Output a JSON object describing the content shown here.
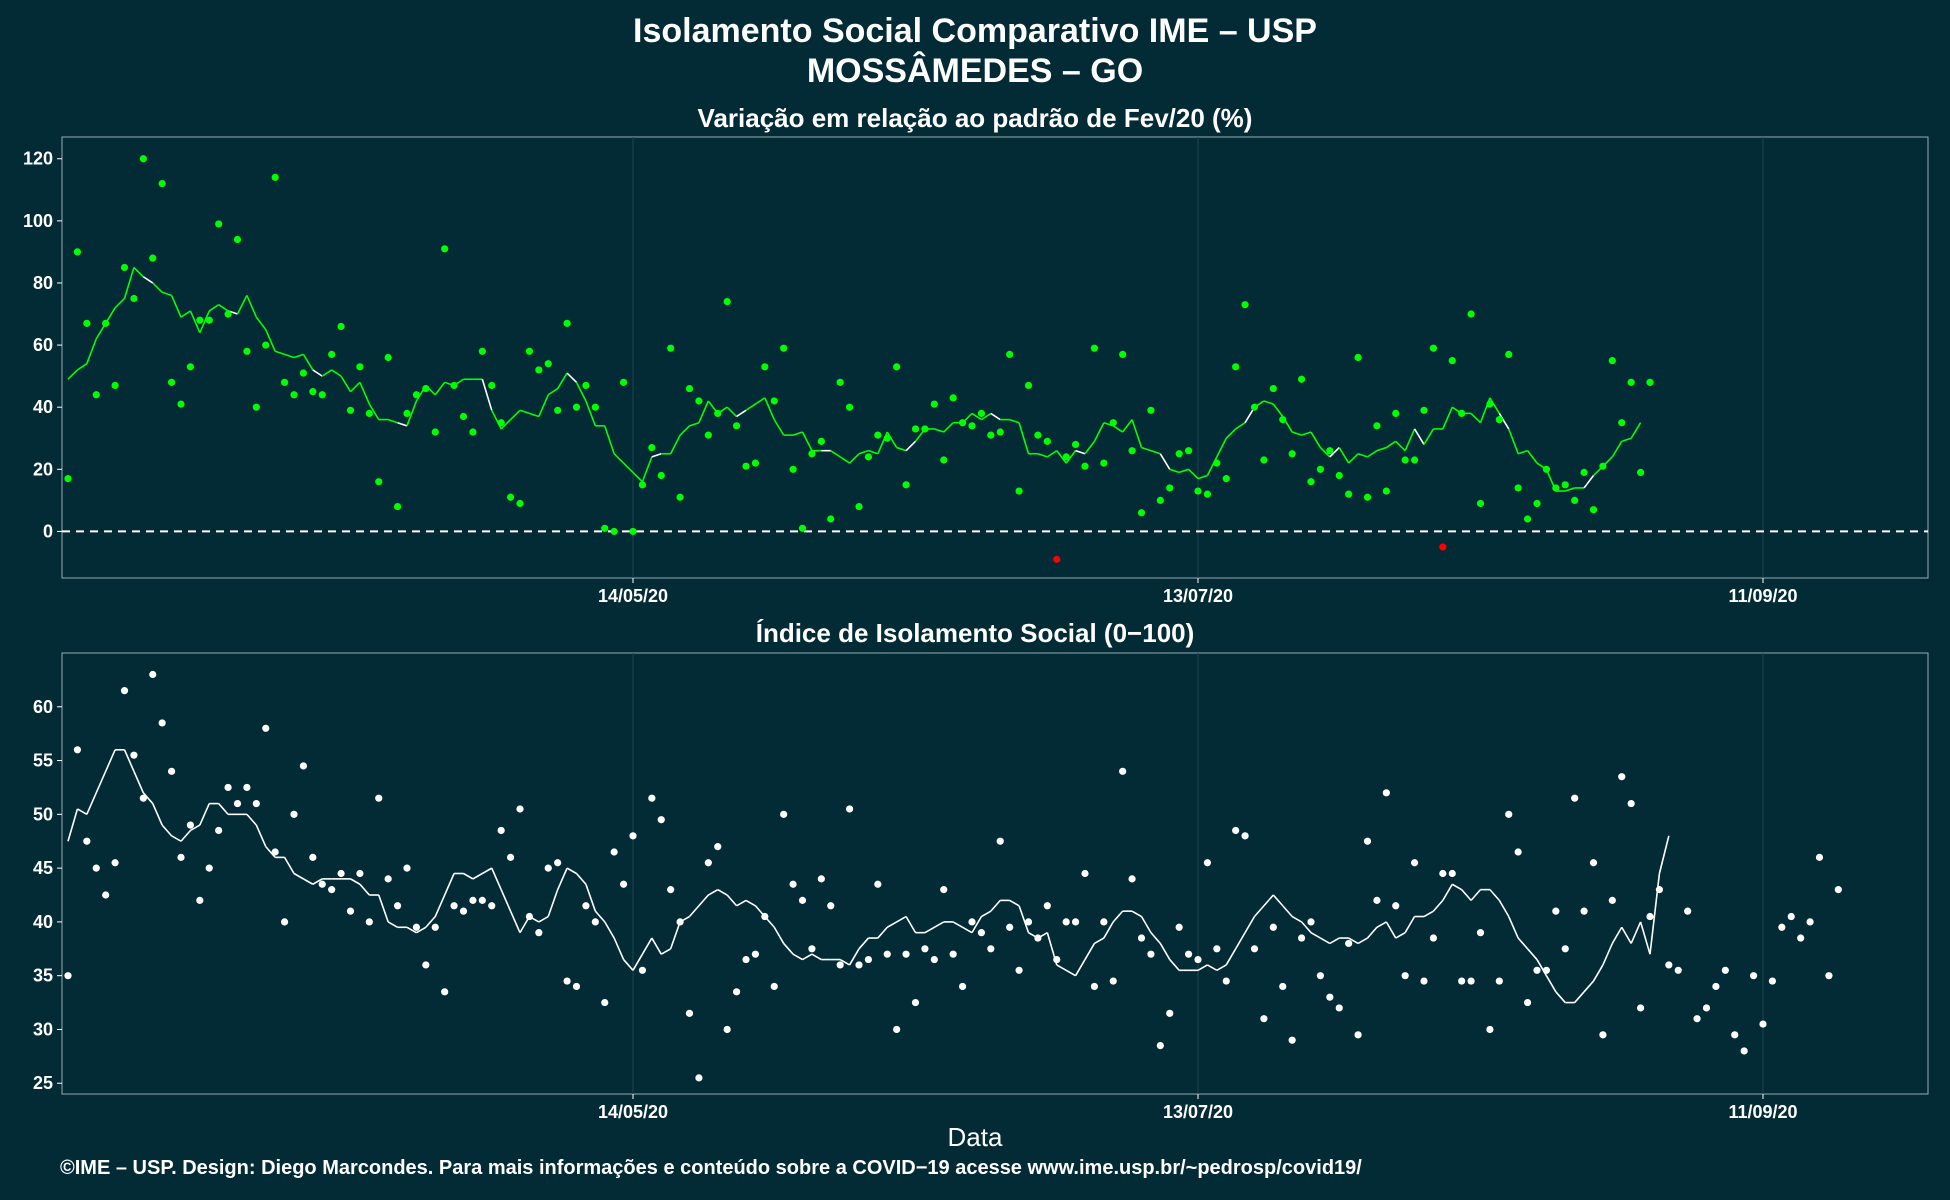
{
  "header": {
    "title_line1": "Isolamento Social Comparativo IME – USP",
    "title_line2": "MOSSÂMEDES – GO"
  },
  "xlabel": "Data",
  "footer": "©IME – USP. Design: Diego Marcondes. Para mais informações e conteúdo sobre a COVID−19 acesse www.ime.usp.br/~pedrosp/covid19/",
  "colors": {
    "background": "#022b36",
    "green": "#00ff00",
    "red": "#ff0000",
    "white": "#ffffff",
    "grid": "#1d4550"
  },
  "chart_data": [
    {
      "type": "scatter",
      "title": "Variação em relação ao padrão de Fev/20 (%)",
      "xlabel": "",
      "ylabel": "",
      "x_start": "2020-03-15",
      "xtick_labels": [
        "14/05/20",
        "13/07/20",
        "11/09/20"
      ],
      "xtick_days": [
        60,
        120,
        180
      ],
      "yticks": [
        0,
        20,
        40,
        60,
        80,
        100,
        120
      ],
      "ylim": [
        -15,
        127
      ],
      "reference_line": 0,
      "series": [
        {
          "role": "daily-points",
          "color": "#00ff00",
          "negative_color": "#ff0000",
          "values": [
            17,
            90,
            67,
            44,
            67,
            47,
            85,
            75,
            120,
            88,
            112,
            48,
            41,
            53,
            68,
            68,
            99,
            70,
            94,
            58,
            40,
            60,
            114,
            48,
            44,
            51,
            45,
            44,
            57,
            66,
            39,
            53,
            38,
            16,
            56,
            8,
            38,
            44,
            46,
            32,
            91,
            47,
            37,
            32,
            58,
            47,
            35,
            11,
            9,
            58,
            52,
            54,
            39,
            67,
            40,
            47,
            40,
            1,
            0,
            48,
            0,
            15,
            27,
            18,
            59,
            11,
            46,
            42,
            31,
            38,
            74,
            34,
            21,
            22,
            53,
            42,
            59,
            20,
            1,
            25,
            29,
            4,
            48,
            40,
            8,
            24,
            31,
            30,
            53,
            15,
            33,
            33,
            41,
            23,
            43,
            35,
            34,
            38,
            31,
            32,
            57,
            13,
            47,
            31,
            29,
            -9,
            24,
            28,
            21,
            59,
            22,
            35,
            57,
            26,
            6,
            39,
            10,
            14,
            25,
            26,
            13,
            12,
            22,
            17,
            53,
            73,
            40,
            23,
            46,
            36,
            25,
            49,
            16,
            20,
            26,
            18,
            12,
            56,
            11,
            34,
            13,
            38,
            23,
            23,
            39,
            59,
            -5,
            55,
            38,
            70,
            9,
            41,
            36,
            57,
            14,
            4,
            9,
            20,
            14,
            15,
            10,
            19,
            7,
            21,
            55,
            35,
            48,
            19,
            48
          ]
        },
        {
          "role": "moving-average",
          "color": "#00ff00",
          "negative_color": "#ff0000",
          "values": [
            49,
            52,
            54,
            62,
            67,
            72,
            75,
            85,
            82,
            80,
            77,
            76,
            69,
            71,
            64,
            71,
            73,
            71,
            70,
            76,
            69,
            65,
            58,
            57,
            56,
            57,
            52,
            50,
            52,
            50,
            45,
            48,
            41,
            36,
            36,
            35,
            34,
            42,
            47,
            44,
            48,
            47,
            49,
            49,
            49,
            39,
            33,
            36,
            39,
            38,
            37,
            44,
            46,
            51,
            48,
            42,
            34,
            34,
            25,
            22,
            19,
            16,
            24,
            25,
            25,
            31,
            34,
            35,
            42,
            38,
            40,
            37,
            39,
            41,
            43,
            36,
            31,
            31,
            32,
            26,
            26,
            26,
            24,
            22,
            25,
            26,
            25,
            32,
            27,
            26,
            29,
            33,
            33,
            32,
            35,
            35,
            38,
            36,
            38,
            36,
            36,
            35,
            25,
            25,
            24,
            26,
            22,
            26,
            25,
            29,
            35,
            34,
            32,
            36,
            27,
            26,
            25,
            20,
            19,
            20,
            17,
            18,
            24,
            30,
            33,
            35,
            40,
            42,
            41,
            37,
            32,
            31,
            32,
            27,
            24,
            27,
            22,
            25,
            24,
            26,
            27,
            29,
            26,
            33,
            28,
            33,
            33,
            40,
            38,
            38,
            35,
            43,
            38,
            33,
            25,
            26,
            22,
            20,
            13,
            13,
            14,
            14,
            18,
            21,
            24,
            29,
            30,
            35
          ]
        }
      ]
    },
    {
      "type": "scatter",
      "title": "Índice de Isolamento Social (0−100)",
      "xlabel": "Data",
      "ylabel": "",
      "x_start": "2020-03-15",
      "xtick_labels": [
        "14/05/20",
        "13/07/20",
        "11/09/20"
      ],
      "xtick_days": [
        60,
        120,
        180
      ],
      "yticks": [
        25,
        30,
        35,
        40,
        45,
        50,
        55,
        60
      ],
      "ylim": [
        24,
        65
      ],
      "series": [
        {
          "role": "daily-points",
          "color": "#ffffff",
          "values": [
            35,
            56,
            47.5,
            45,
            42.5,
            45.5,
            61.5,
            55.5,
            51.5,
            63,
            58.5,
            54,
            46,
            49,
            42,
            45,
            48.5,
            52.5,
            51,
            52.5,
            51,
            58,
            46.5,
            40,
            50,
            54.5,
            46,
            43.5,
            43,
            44.5,
            41,
            44.5,
            40,
            51.5,
            44,
            41.5,
            45,
            39.5,
            36,
            39.5,
            33.5,
            41.5,
            41,
            42,
            42,
            41.5,
            48.5,
            46,
            50.5,
            40.5,
            39,
            45,
            45.5,
            34.5,
            34,
            41.5,
            40,
            32.5,
            46.5,
            43.5,
            48,
            35.5,
            51.5,
            49.5,
            43,
            40,
            31.5,
            25.5,
            45.5,
            47,
            30,
            33.5,
            36.5,
            37,
            40.5,
            34,
            50,
            43.5,
            42,
            37.5,
            44,
            41.5,
            36,
            50.5,
            36,
            36.5,
            43.5,
            37,
            30,
            37,
            32.5,
            37.5,
            36.5,
            43,
            37,
            34,
            40,
            39,
            37.5,
            47.5,
            39.5,
            35.5,
            40,
            38.5,
            41.5,
            36.5,
            40,
            40,
            44.5,
            34,
            40,
            34.5,
            54,
            44,
            38.5,
            37,
            28.5,
            31.5,
            39.5,
            37,
            36.5,
            45.5,
            37.5,
            34.5,
            48.5,
            48,
            37.5,
            31,
            39.5,
            34,
            29,
            38.5,
            40,
            35,
            33,
            32,
            38,
            29.5,
            47.5,
            42,
            52,
            41.5,
            35,
            45.5,
            34.5,
            38.5,
            44.5,
            44.5,
            34.5,
            34.5,
            39,
            30,
            34.5,
            50,
            46.5,
            32.5,
            35.5,
            35.5,
            41,
            37.5,
            51.5,
            41,
            45.5,
            29.5,
            42,
            53.5,
            51,
            32,
            40.5,
            43,
            36,
            35.5,
            41,
            31,
            32,
            34,
            35.5,
            29.5,
            28,
            35,
            30.5,
            34.5,
            39.5,
            40.5,
            38.5,
            40,
            46,
            35,
            43
          ]
        },
        {
          "role": "moving-average",
          "color": "#ffffff",
          "values": [
            47.5,
            50.5,
            50,
            52,
            54,
            56,
            56,
            54,
            52,
            51,
            49,
            48,
            47.5,
            48.5,
            49,
            51,
            51,
            50,
            50,
            50,
            49,
            47,
            46,
            46,
            44.5,
            44,
            43.5,
            44,
            44,
            44,
            44,
            43.5,
            42.5,
            42.5,
            40,
            39.5,
            39.5,
            39,
            39.5,
            40.5,
            42.5,
            44.5,
            44.5,
            44,
            44.5,
            45,
            43,
            41,
            39,
            40.5,
            40,
            40.5,
            43,
            45,
            44.5,
            43.5,
            41,
            40,
            38.5,
            36.5,
            35.5,
            37,
            38.5,
            37,
            37.5,
            40,
            40.5,
            41.5,
            42.5,
            43,
            42.5,
            41.5,
            42,
            41.5,
            40.5,
            39.5,
            38,
            37,
            36.5,
            37,
            36.5,
            36.5,
            36.5,
            36,
            37.5,
            38.5,
            38.5,
            39.5,
            40,
            40.5,
            39,
            39,
            39.5,
            40,
            40,
            39.5,
            39,
            40.5,
            41,
            42,
            42,
            41.5,
            39,
            38.5,
            39,
            36,
            35.5,
            35,
            36.5,
            38,
            38.5,
            40,
            41,
            41,
            40.5,
            39,
            38,
            36.5,
            35.5,
            35.5,
            35.5,
            36,
            35.5,
            36,
            37.5,
            39,
            40.5,
            41.5,
            42.5,
            41.5,
            40.5,
            40,
            39,
            38.5,
            38,
            38.5,
            38.5,
            38,
            38.5,
            39.5,
            40,
            38.5,
            39,
            40.5,
            40.5,
            41,
            42,
            43.5,
            43,
            42,
            43,
            43,
            42,
            40.5,
            38.5,
            37.5,
            36.5,
            35,
            33.5,
            32.5,
            32.5,
            33.5,
            34.5,
            36,
            38,
            39.5,
            38,
            40,
            37,
            44.5,
            48
          ]
        }
      ]
    }
  ]
}
